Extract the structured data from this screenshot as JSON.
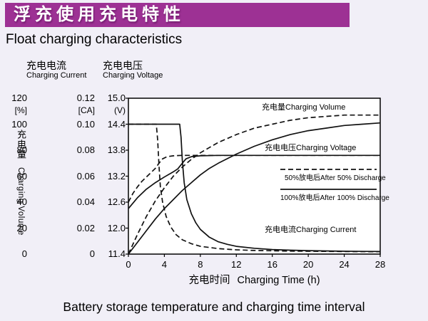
{
  "page": {
    "banner_title": "浮充使用充电特性",
    "subtitle": "Float charging characteristics",
    "caption": "Battery storage temperature and charging time interval"
  },
  "chart_data": {
    "type": "line",
    "grid": false,
    "legend_position": "right-inside",
    "x_axis": {
      "title_cn": "充电时间",
      "title_en": "Charging Time (h)",
      "range": [
        0,
        28
      ],
      "ticks": [
        0,
        4,
        8,
        12,
        16,
        20,
        24,
        28
      ]
    },
    "y_axes": [
      {
        "id": "volume",
        "axis_title_cn": "充电量",
        "axis_title_en": "Charging Volume",
        "unit": "[%]",
        "range": [
          0,
          120
        ],
        "ticks": [
          "120",
          "100",
          "80",
          "60",
          "40",
          "20",
          "0"
        ]
      },
      {
        "id": "current",
        "header_cn": "充电电流",
        "header_en": "Charging Current",
        "unit": "[CA]",
        "range": [
          0,
          0.12
        ],
        "ticks": [
          "0.12",
          "0.10",
          "0.08",
          "0.06",
          "0.04",
          "0.02",
          "0"
        ]
      },
      {
        "id": "voltage",
        "header_cn": "充电电压",
        "header_en": "Charging Voltage",
        "unit": "(V)",
        "range": [
          11.4,
          15.0
        ],
        "ticks": [
          "15.0",
          "14.4",
          "13.8",
          "13.2",
          "12.6",
          "12.0",
          "11.4"
        ]
      }
    ],
    "series": [
      {
        "name": "charging_volume_after_50pct_discharge",
        "scale": "volume",
        "style": "dashed",
        "points": [
          [
            0,
            0
          ],
          [
            1,
            15
          ],
          [
            2,
            29
          ],
          [
            3,
            41
          ],
          [
            4,
            51
          ],
          [
            5,
            60
          ],
          [
            6,
            67
          ],
          [
            7,
            73
          ],
          [
            8,
            78
          ],
          [
            9,
            82
          ],
          [
            10,
            86
          ],
          [
            12,
            92
          ],
          [
            14,
            97
          ],
          [
            16,
            100
          ],
          [
            18,
            103
          ],
          [
            20,
            105
          ],
          [
            24,
            107
          ],
          [
            28,
            107
          ]
        ]
      },
      {
        "name": "charging_volume_after_100pct_discharge",
        "scale": "volume",
        "style": "solid",
        "points": [
          [
            0,
            0
          ],
          [
            1,
            9
          ],
          [
            2,
            18
          ],
          [
            3,
            27
          ],
          [
            4,
            35
          ],
          [
            5,
            42
          ],
          [
            6,
            49
          ],
          [
            7,
            55
          ],
          [
            8,
            61
          ],
          [
            9,
            66
          ],
          [
            10,
            70
          ],
          [
            12,
            77
          ],
          [
            14,
            83
          ],
          [
            16,
            88
          ],
          [
            18,
            92
          ],
          [
            20,
            95
          ],
          [
            22,
            97
          ],
          [
            24,
            99
          ],
          [
            26,
            100
          ],
          [
            28,
            101
          ]
        ]
      },
      {
        "name": "charging_voltage_after_50pct_discharge",
        "scale": "voltage",
        "style": "dashed",
        "points": [
          [
            0,
            12.6
          ],
          [
            0.5,
            12.8
          ],
          [
            1,
            12.95
          ],
          [
            1.5,
            13.08
          ],
          [
            2,
            13.18
          ],
          [
            2.5,
            13.28
          ],
          [
            3,
            13.38
          ],
          [
            3.4,
            13.5
          ],
          [
            3.8,
            13.6
          ],
          [
            4.3,
            13.65
          ],
          [
            5,
            13.67
          ],
          [
            6,
            13.68
          ],
          [
            28,
            13.68
          ]
        ]
      },
      {
        "name": "charging_voltage_after_100pct_discharge",
        "scale": "voltage",
        "style": "solid",
        "points": [
          [
            0,
            12.45
          ],
          [
            1,
            12.7
          ],
          [
            2,
            12.9
          ],
          [
            3,
            13.05
          ],
          [
            4,
            13.18
          ],
          [
            5,
            13.3
          ],
          [
            5.5,
            13.37
          ],
          [
            6,
            13.5
          ],
          [
            6.4,
            13.6
          ],
          [
            7,
            13.65
          ],
          [
            8,
            13.67
          ],
          [
            10,
            13.68
          ],
          [
            28,
            13.68
          ]
        ]
      },
      {
        "name": "charging_current_after_50pct_discharge",
        "scale": "current",
        "style": "dashed",
        "points": [
          [
            0,
            0.1
          ],
          [
            3.1,
            0.1
          ],
          [
            3.25,
            0.088
          ],
          [
            3.4,
            0.068
          ],
          [
            3.55,
            0.052
          ],
          [
            3.8,
            0.04
          ],
          [
            4.2,
            0.029
          ],
          [
            4.7,
            0.021
          ],
          [
            5.3,
            0.015
          ],
          [
            6,
            0.011
          ],
          [
            7,
            0.008
          ],
          [
            8,
            0.006
          ],
          [
            10,
            0.0042
          ],
          [
            12,
            0.0033
          ],
          [
            14,
            0.0028
          ],
          [
            18,
            0.0023
          ],
          [
            24,
            0.002
          ],
          [
            28,
            0.0018
          ]
        ]
      },
      {
        "name": "charging_current_after_100pct_discharge",
        "scale": "current",
        "style": "solid",
        "points": [
          [
            0,
            0.1
          ],
          [
            5.7,
            0.1
          ],
          [
            5.85,
            0.09
          ],
          [
            6.0,
            0.072
          ],
          [
            6.2,
            0.055
          ],
          [
            6.5,
            0.042
          ],
          [
            7,
            0.031
          ],
          [
            7.5,
            0.024
          ],
          [
            8,
            0.019
          ],
          [
            9,
            0.013
          ],
          [
            10,
            0.0095
          ],
          [
            11,
            0.0075
          ],
          [
            12,
            0.006
          ],
          [
            14,
            0.0045
          ],
          [
            16,
            0.0035
          ],
          [
            18,
            0.003
          ],
          [
            20,
            0.0027
          ],
          [
            24,
            0.0022
          ],
          [
            28,
            0.002
          ]
        ]
      }
    ],
    "annotations": {
      "volume_label": "充电量Charging Volume",
      "voltage_label": "充电电压Charging Voltage",
      "legend_50": "50%放电后After 50% Discharge",
      "legend_100": "100%放电后After 100% Discharge",
      "current_label": "充电电流Charging Current"
    },
    "colors": {
      "curve": "#111111",
      "banner": "#9d3194",
      "plot_bg": "#ffffff",
      "page_bg": "#f1eff7"
    }
  }
}
